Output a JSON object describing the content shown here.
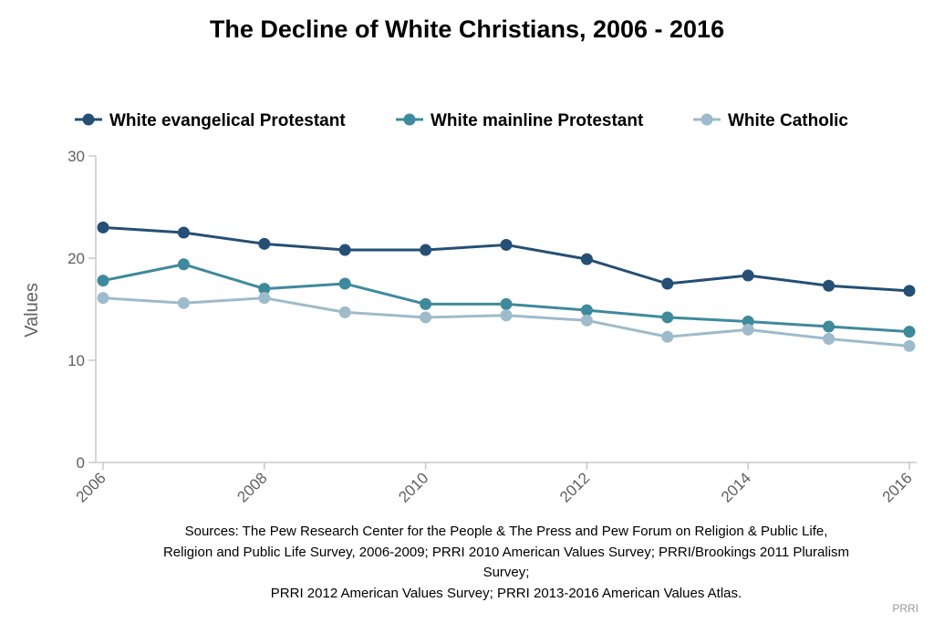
{
  "chart_data": {
    "type": "line",
    "title": "The Decline of White Christians, 2006 - 2016",
    "ylabel": "Values",
    "xlabel": "",
    "x": [
      2006,
      2007,
      2008,
      2009,
      2010,
      2011,
      2012,
      2013,
      2014,
      2015,
      2016
    ],
    "x_tick_labels": [
      "2006",
      "2008",
      "2010",
      "2012",
      "2014",
      "2016"
    ],
    "y_tick_labels": [
      "0",
      "10",
      "20",
      "30"
    ],
    "ylim": [
      0,
      30
    ],
    "xlim": [
      2006,
      2016
    ],
    "legend_position": "top",
    "series": [
      {
        "name": "White evangelical Protestant",
        "color": "#254f74",
        "values": [
          23.0,
          22.5,
          21.4,
          20.8,
          20.8,
          21.3,
          19.9,
          17.5,
          18.3,
          17.3,
          16.8
        ]
      },
      {
        "name": "White mainline Protestant",
        "color": "#3e8a9c",
        "values": [
          17.8,
          19.4,
          17.0,
          17.5,
          15.5,
          15.5,
          14.9,
          14.2,
          13.8,
          13.3,
          12.8
        ]
      },
      {
        "name": "White Catholic",
        "color": "#9ebbcb",
        "values": [
          16.1,
          15.6,
          16.1,
          14.7,
          14.2,
          14.4,
          13.9,
          12.3,
          13.0,
          12.1,
          11.4
        ]
      }
    ]
  },
  "sources": [
    "Sources: The Pew Research Center for the People & The Press and Pew Forum on Religion & Public Life,",
    "Religion and Public Life Survey, 2006-2009; PRRI 2010 American Values Survey; PRRI/Brookings 2011 Pluralism",
    "Survey;",
    "PRRI 2012 American Values Survey; PRRI 2013-2016 American Values Atlas."
  ],
  "credit": "PRRI"
}
